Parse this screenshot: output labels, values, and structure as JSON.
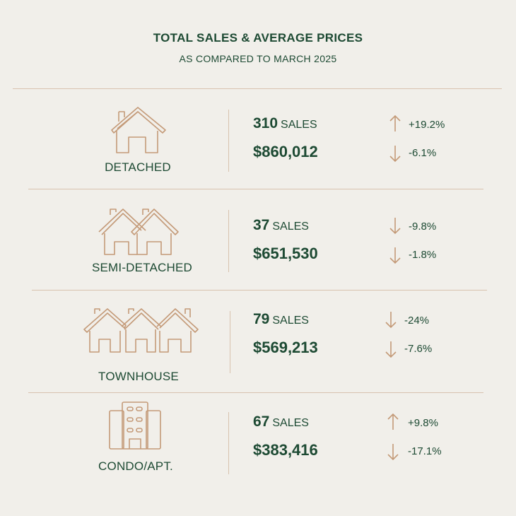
{
  "header": {
    "title": "TOTAL SALES & AVERAGE PRICES",
    "subtitle": "AS COMPARED TO MARCH 2025"
  },
  "colors": {
    "background": "#f1efea",
    "text": "#1d4a33",
    "accent": "#c49a78"
  },
  "rows": [
    {
      "label": "DETACHED",
      "icon": "house-icon",
      "sales_count": "310",
      "sales_unit": "SALES",
      "sales_change": "+19.2%",
      "sales_direction": "up",
      "price": "$860,012",
      "price_change": "-6.1%",
      "price_direction": "down"
    },
    {
      "label": "SEMI-DETACHED",
      "icon": "semi-detached-icon",
      "sales_count": "37",
      "sales_unit": "SALES",
      "sales_change": "-9.8%",
      "sales_direction": "down",
      "price": "$651,530",
      "price_change": "-1.8%",
      "price_direction": "down"
    },
    {
      "label": "TOWNHOUSE",
      "icon": "townhouse-icon",
      "sales_count": "79",
      "sales_unit": "SALES",
      "sales_change": "-24%",
      "sales_direction": "down",
      "price": "$569,213",
      "price_change": "-7.6%",
      "price_direction": "down"
    },
    {
      "label": "CONDO/APT.",
      "icon": "condo-building-icon",
      "sales_count": "67",
      "sales_unit": "SALES",
      "sales_change": "+9.8%",
      "sales_direction": "up",
      "price": "$383,416",
      "price_change": "-17.1%",
      "price_direction": "down"
    }
  ]
}
